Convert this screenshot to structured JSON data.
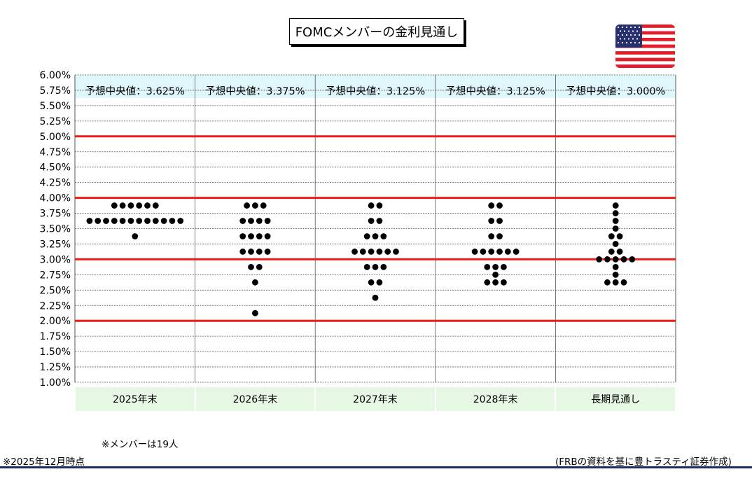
{
  "title": "FOMCメンバーの金利見通し",
  "notes": {
    "members": "※メンバーは19人",
    "as_of": "※2025年12月時点",
    "source": "(FRBの資料を基に豊トラスティ証券作成)"
  },
  "colors": {
    "highlight_line": "#ee1c1c",
    "dot": "#000000",
    "median_band": "#dff6fb",
    "category_band": "#e6f8e3",
    "footer_rule": "#1f2d64"
  },
  "chart_data": {
    "type": "scatter",
    "title": "FOMCメンバーの金利見通し",
    "ylim": [
      1.0,
      6.0
    ],
    "y_ticks": [
      "1.00%",
      "1.25%",
      "1.50%",
      "1.75%",
      "2.00%",
      "2.25%",
      "2.50%",
      "2.75%",
      "3.00%",
      "3.25%",
      "3.50%",
      "3.75%",
      "4.00%",
      "4.25%",
      "4.50%",
      "4.75%",
      "5.00%",
      "5.25%",
      "5.50%",
      "5.75%",
      "6.00%"
    ],
    "highlight_levels": [
      2.0,
      3.0,
      4.0,
      5.0
    ],
    "categories": [
      "2025年末",
      "2026年末",
      "2027年末",
      "2028年末",
      "長期見通し"
    ],
    "medians": [
      "予想中央値：3.625%",
      "予想中央値：3.375%",
      "予想中央値：3.125%",
      "予想中央値：3.125%",
      "予想中央値：3.000%"
    ],
    "dot_groups": [
      {
        "category": "2025年末",
        "levels": [
          {
            "y": 3.875,
            "count": 6
          },
          {
            "y": 3.625,
            "count": 12
          },
          {
            "y": 3.375,
            "count": 1
          }
        ]
      },
      {
        "category": "2026年末",
        "levels": [
          {
            "y": 3.875,
            "count": 3
          },
          {
            "y": 3.625,
            "count": 4
          },
          {
            "y": 3.375,
            "count": 4
          },
          {
            "y": 3.125,
            "count": 4
          },
          {
            "y": 2.875,
            "count": 2
          },
          {
            "y": 2.625,
            "count": 1
          },
          {
            "y": 2.125,
            "count": 1
          }
        ]
      },
      {
        "category": "2027年末",
        "levels": [
          {
            "y": 3.875,
            "count": 2
          },
          {
            "y": 3.625,
            "count": 2
          },
          {
            "y": 3.375,
            "count": 3
          },
          {
            "y": 3.125,
            "count": 6
          },
          {
            "y": 2.875,
            "count": 3
          },
          {
            "y": 2.625,
            "count": 2
          },
          {
            "y": 2.375,
            "count": 1
          }
        ]
      },
      {
        "category": "2028年末",
        "levels": [
          {
            "y": 3.875,
            "count": 2
          },
          {
            "y": 3.625,
            "count": 2
          },
          {
            "y": 3.375,
            "count": 2
          },
          {
            "y": 3.125,
            "count": 6
          },
          {
            "y": 2.875,
            "count": 3
          },
          {
            "y": 2.75,
            "count": 1
          },
          {
            "y": 2.625,
            "count": 3
          }
        ]
      },
      {
        "category": "長期見通し",
        "levels": [
          {
            "y": 3.875,
            "count": 1
          },
          {
            "y": 3.75,
            "count": 1
          },
          {
            "y": 3.625,
            "count": 1
          },
          {
            "y": 3.5,
            "count": 1
          },
          {
            "y": 3.375,
            "count": 2
          },
          {
            "y": 3.25,
            "count": 1
          },
          {
            "y": 3.125,
            "count": 2
          },
          {
            "y": 3.0,
            "count": 5
          },
          {
            "y": 2.875,
            "count": 1
          },
          {
            "y": 2.75,
            "count": 1
          },
          {
            "y": 2.625,
            "count": 3
          }
        ]
      }
    ]
  }
}
